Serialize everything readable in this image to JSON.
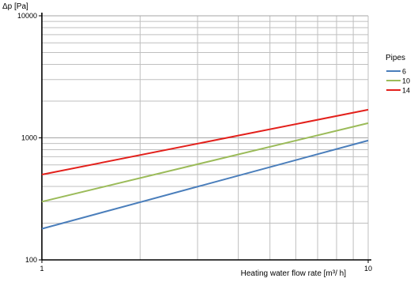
{
  "chart_data": {
    "type": "line",
    "xlabel": "Heating water flow rate [m³/ h]",
    "ylabel": "Δp [Pa]",
    "x_scale": "log",
    "y_scale": "log",
    "xlim": [
      1,
      10
    ],
    "ylim": [
      100,
      10000
    ],
    "x_tick_labels": [
      "1",
      "10"
    ],
    "y_tick_labels": [
      "100",
      "1000",
      "10000"
    ],
    "grid": true,
    "legend_title": "Pipes",
    "legend_position": "right",
    "series": [
      {
        "name": "6",
        "color": "#4a7ebb",
        "x": [
          1,
          10
        ],
        "y": [
          180,
          950
        ]
      },
      {
        "name": "10",
        "color": "#9bbb59",
        "x": [
          1,
          10
        ],
        "y": [
          300,
          1320
        ]
      },
      {
        "name": "14",
        "color": "#e3201b",
        "x": [
          1,
          10
        ],
        "y": [
          500,
          1700
        ]
      }
    ]
  }
}
